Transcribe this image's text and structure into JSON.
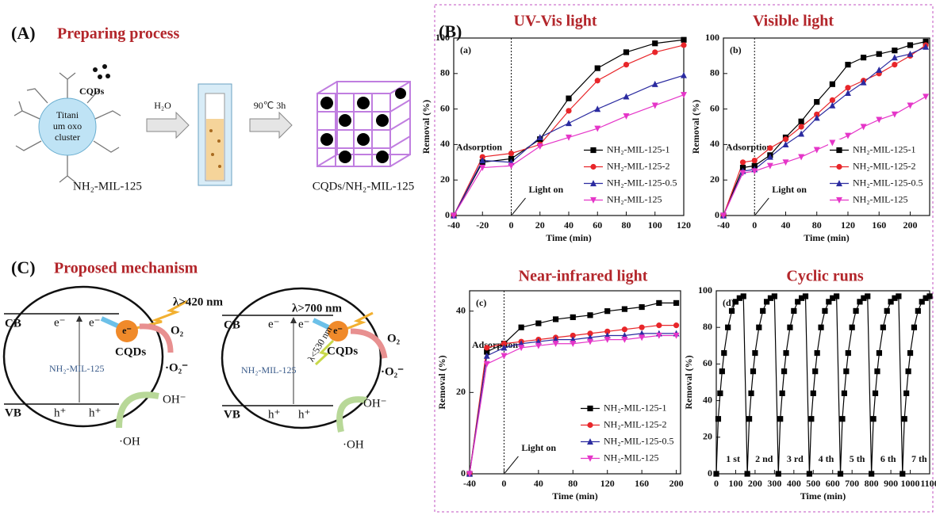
{
  "panel_a": {
    "label": "(A)",
    "title": "Preparing process",
    "cluster_lines": [
      "Titani",
      "um oxo",
      "cluster"
    ],
    "cqds": "CQDs",
    "reagent": "H₂O",
    "condition": "90℃ 3h",
    "precursor": "NH₂-MIL-125",
    "product": "CQDs/NH₂-MIL-125"
  },
  "panel_b_label": "(B)",
  "panel_c": {
    "label": "(C)",
    "title": "Proposed mechanism",
    "schemes": [
      {
        "cb": "CB",
        "vb": "VB",
        "electron": "e⁻",
        "hole": "h⁺",
        "light": "λ>420 nm",
        "oxygen": "O₂",
        "superoxide": "·O₂⁻",
        "framework": "NH₂-MIL-125",
        "cqds": "CQDs",
        "hydroxide": "OH⁻",
        "hydroxyl": "·OH"
      },
      {
        "cb": "CB",
        "vb": "VB",
        "electron": "e⁻",
        "hole": "h⁺",
        "light": "λ>700 nm",
        "emission": "λ<530 nm",
        "oxygen": "O₂",
        "superoxide": "·O₂⁻",
        "framework": "NH₂-MIL-125",
        "cqds": "CQDs",
        "hydroxide": "OH⁻",
        "hydroxyl": "·OH"
      }
    ]
  },
  "chart_data": [
    {
      "type": "line",
      "title": "UV-Vis light",
      "panel": "(a)",
      "xlabel": "Time (min)",
      "ylabel": "Removal (%)",
      "adsorption_label": "Adsorption",
      "light_on_label": "Light on",
      "light_on_x": 0,
      "legend": "lower right",
      "x": [
        -40,
        -20,
        0,
        20,
        40,
        60,
        80,
        100,
        120
      ],
      "xlim": [
        -40,
        120
      ],
      "xticks": [
        -40,
        -20,
        0,
        20,
        40,
        60,
        80,
        100,
        120
      ],
      "ylim": [
        0,
        100
      ],
      "yticks": [
        0,
        20,
        40,
        60,
        80,
        100
      ],
      "series": [
        {
          "name": "NH₂-MIL-125-1",
          "color": "#000000",
          "marker": "square",
          "values": [
            0,
            30,
            32,
            43,
            66,
            83,
            92,
            97,
            99
          ]
        },
        {
          "name": "NH₂-MIL-125-2",
          "color": "#e8262a",
          "marker": "circle",
          "values": [
            0,
            33,
            35,
            40,
            59,
            76,
            85,
            92,
            96
          ]
        },
        {
          "name": "NH₂-MIL-125-0.5",
          "color": "#2b2ba0",
          "marker": "triangle",
          "values": [
            0,
            31,
            30,
            44,
            52,
            60,
            67,
            74,
            79
          ]
        },
        {
          "name": "NH₂-MIL-125",
          "color": "#e535c8",
          "marker": "down-triangle",
          "values": [
            0,
            27,
            28,
            39,
            44,
            49,
            56,
            62,
            68
          ]
        }
      ]
    },
    {
      "type": "line",
      "title": "Visible light",
      "panel": "(b)",
      "xlabel": "Time (min)",
      "ylabel": "Removal (%)",
      "adsorption_label": "Adsorption",
      "light_on_label": "Light on",
      "light_on_x": 0,
      "legend": "lower right",
      "x": [
        -40,
        -15,
        0,
        20,
        40,
        60,
        80,
        100,
        120,
        140,
        160,
        180,
        200,
        220
      ],
      "xlim": [
        -40,
        225
      ],
      "xticks": [
        -40,
        0,
        40,
        80,
        120,
        160,
        200
      ],
      "ylim": [
        0,
        100
      ],
      "yticks": [
        0,
        20,
        40,
        60,
        80,
        100
      ],
      "series": [
        {
          "name": "NH₂-MIL-125-1",
          "color": "#000000",
          "marker": "square",
          "values": [
            0,
            27,
            28,
            34,
            44,
            53,
            64,
            74,
            85,
            89,
            91,
            93,
            96,
            98
          ]
        },
        {
          "name": "NH₂-MIL-125-2",
          "color": "#e8262a",
          "marker": "circle",
          "values": [
            0,
            30,
            31,
            38,
            43,
            50,
            57,
            65,
            72,
            76,
            80,
            85,
            90,
            96
          ]
        },
        {
          "name": "NH₂-MIL-125-0.5",
          "color": "#2b2ba0",
          "marker": "triangle",
          "values": [
            0,
            25,
            26,
            33,
            40,
            46,
            55,
            62,
            69,
            75,
            82,
            89,
            91,
            95
          ]
        },
        {
          "name": "NH₂-MIL-125",
          "color": "#e535c8",
          "marker": "down-triangle",
          "values": [
            0,
            24,
            25,
            28,
            30,
            33,
            37,
            41,
            45,
            50,
            54,
            57,
            62,
            67
          ]
        }
      ]
    },
    {
      "type": "line",
      "title": "Near-infrared light",
      "panel": "(c)",
      "xlabel": "Time (min)",
      "ylabel": "Removal (%)",
      "adsorption_label": "Adsorption",
      "light_on_label": "Light on",
      "light_on_x": 0,
      "legend": "lower right",
      "x": [
        -40,
        -20,
        0,
        20,
        40,
        60,
        80,
        100,
        120,
        140,
        160,
        180,
        200
      ],
      "xlim": [
        -40,
        205
      ],
      "xticks": [
        -40,
        0,
        40,
        80,
        120,
        160,
        200
      ],
      "ylim": [
        0,
        45
      ],
      "yticks": [
        0,
        20,
        40
      ],
      "series": [
        {
          "name": "NH₂-MIL-125-1",
          "color": "#000000",
          "marker": "square",
          "values": [
            0,
            30,
            32,
            36,
            37,
            38,
            38.5,
            39,
            40,
            40.5,
            41,
            42,
            42
          ]
        },
        {
          "name": "NH₂-MIL-125-2",
          "color": "#e8262a",
          "marker": "circle",
          "values": [
            0,
            31,
            32,
            32.5,
            33,
            33.5,
            34,
            34.5,
            35,
            35.5,
            36,
            36.5,
            36.5
          ]
        },
        {
          "name": "NH₂-MIL-125-0.5",
          "color": "#2b2ba0",
          "marker": "triangle",
          "values": [
            0,
            29,
            31,
            32,
            32.5,
            33,
            33,
            33.5,
            34,
            34,
            34.5,
            34.5,
            34.5
          ]
        },
        {
          "name": "NH₂-MIL-125",
          "color": "#e535c8",
          "marker": "down-triangle",
          "values": [
            0,
            27,
            29,
            31,
            31.5,
            32,
            32,
            32.5,
            33,
            33,
            33.5,
            34,
            34
          ]
        }
      ]
    },
    {
      "type": "line",
      "title": "Cyclic runs",
      "panel": "(d)",
      "xlabel": "Time (min)",
      "ylabel": "Removal (%)",
      "cycle_labels": [
        "1 st",
        "2 nd",
        "3 rd",
        "4 th",
        "5 th",
        "6 th",
        "7 th"
      ],
      "x": [
        0,
        10,
        20,
        30,
        40,
        60,
        80,
        100,
        120,
        140,
        160,
        170,
        180,
        190,
        200,
        220,
        240,
        260,
        280,
        300,
        320,
        330,
        340,
        350,
        360,
        380,
        400,
        420,
        440,
        460,
        480,
        490,
        500,
        510,
        520,
        540,
        560,
        580,
        600,
        620,
        640,
        650,
        660,
        670,
        680,
        700,
        720,
        740,
        760,
        780,
        800,
        810,
        820,
        830,
        840,
        860,
        880,
        900,
        920,
        940,
        960,
        970,
        980,
        990,
        1000,
        1020,
        1040,
        1060,
        1080,
        1100
      ],
      "xlim": [
        0,
        1100
      ],
      "xticks": [
        0,
        100,
        200,
        300,
        400,
        500,
        600,
        700,
        800,
        900,
        1000,
        1100
      ],
      "ylim": [
        0,
        100
      ],
      "yticks": [
        0,
        20,
        40,
        60,
        80,
        100
      ],
      "series": [
        {
          "color": "#000000",
          "marker": "square",
          "values": [
            0,
            30,
            44,
            56,
            66,
            80,
            89,
            94,
            96,
            97,
            0,
            30,
            44,
            56,
            66,
            80,
            89,
            94,
            96,
            97,
            0,
            30,
            44,
            56,
            66,
            80,
            89,
            94,
            96,
            97,
            0,
            30,
            44,
            56,
            66,
            80,
            89,
            94,
            96,
            97,
            0,
            30,
            44,
            56,
            66,
            80,
            89,
            94,
            96,
            97,
            0,
            30,
            44,
            56,
            66,
            80,
            89,
            94,
            96,
            97,
            0,
            30,
            44,
            56,
            66,
            80,
            89,
            94,
            96,
            97
          ]
        }
      ]
    }
  ]
}
